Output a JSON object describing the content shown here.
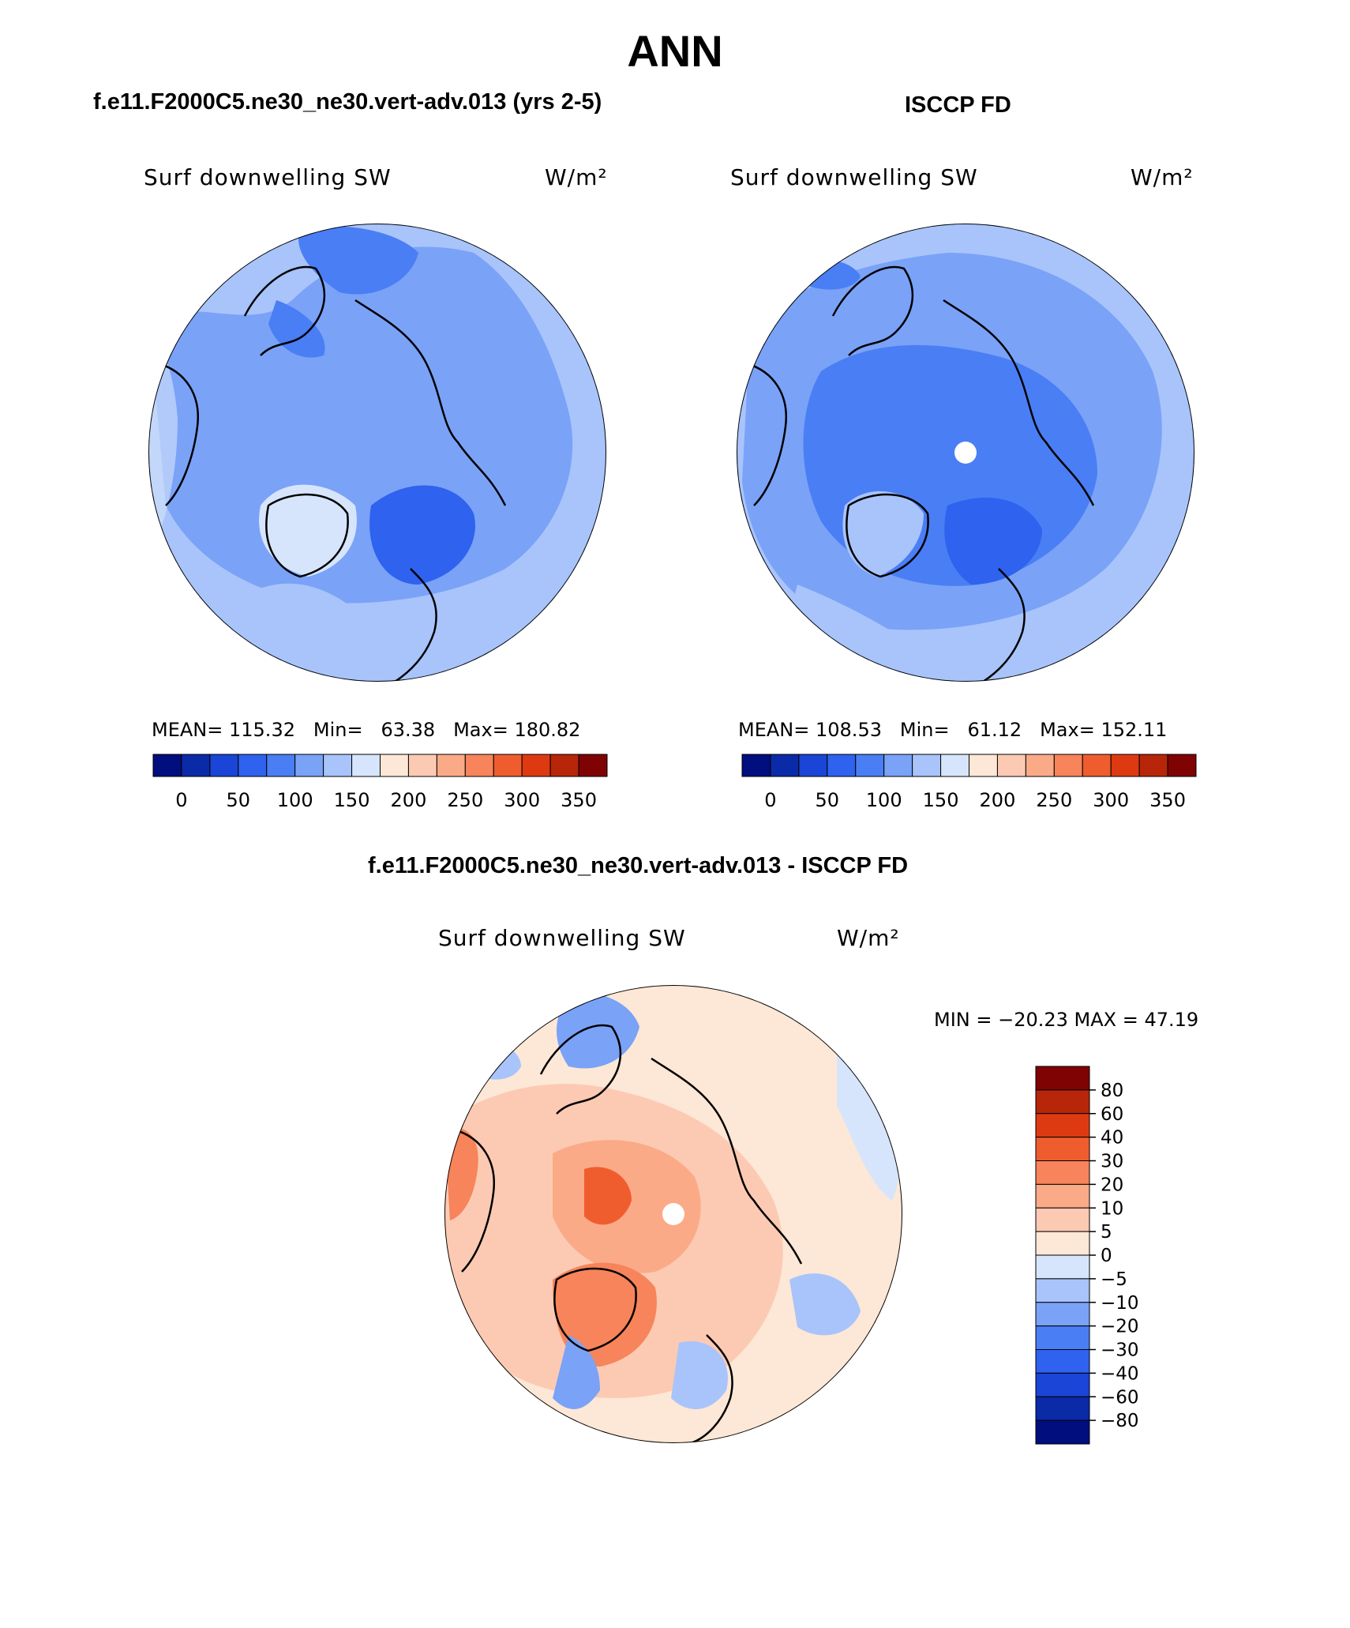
{
  "page": {
    "title": "ANN",
    "left_title": "f.e11.F2000C5.ne30_ne30.vert-adv.013 (yrs 2-5)",
    "right_title": "ISCCP FD",
    "diff_title": "f.e11.F2000C5.ne30_ne30.vert-adv.013 - ISCCP FD"
  },
  "colors": {
    "abs_scale": [
      "#000e7e",
      "#0a2aa8",
      "#1a45d6",
      "#2e62ef",
      "#4a7ef4",
      "#7aa2f7",
      "#a8c4fa",
      "#d6e5fc",
      "#fde7d6",
      "#fccab3",
      "#fbaa88",
      "#f7845a",
      "#ef5d2f",
      "#de3a12",
      "#b72608",
      "#7f0303"
    ],
    "diff_scale": [
      "#000e7e",
      "#0a2aa8",
      "#1a45d6",
      "#2e62ef",
      "#4a7ef4",
      "#7aa2f7",
      "#a8c4fa",
      "#d6e5fc",
      "#fde7d6",
      "#fccab3",
      "#fbaa88",
      "#f7845a",
      "#ef5d2f",
      "#de3a12",
      "#b72608",
      "#7f0303"
    ]
  },
  "chart_data": [
    {
      "type": "heatmap",
      "map": "north-polar-stereographic",
      "variable": "Surf downwelling SW",
      "units": "W/m²",
      "stats": {
        "mean": 115.32,
        "min": 63.38,
        "max": 180.82
      },
      "stats_text": {
        "mean_label": "MEAN=",
        "mean": "115.32",
        "min_label": "Min=",
        "min": "63.38",
        "max_label": "Max=",
        "max": "180.82"
      },
      "colorbar_ticks": [
        "0",
        "50",
        "100",
        "150",
        "200",
        "250",
        "300",
        "350"
      ]
    },
    {
      "type": "heatmap",
      "map": "north-polar-stereographic",
      "variable": "Surf downwelling SW",
      "units": "W/m²",
      "stats": {
        "mean": 108.53,
        "min": 61.12,
        "max": 152.11
      },
      "stats_text": {
        "mean_label": "MEAN=",
        "mean": "108.53",
        "min_label": "Min=",
        "min": "61.12",
        "max_label": "Max=",
        "max": "152.11"
      },
      "colorbar_ticks": [
        "0",
        "50",
        "100",
        "150",
        "200",
        "250",
        "300",
        "350"
      ]
    },
    {
      "type": "heatmap",
      "map": "north-polar-stereographic",
      "variable": "Surf downwelling SW",
      "units": "W/m²",
      "stats": {
        "min": -20.23,
        "max": 47.19
      },
      "stats_text": "MIN = −20.23 MAX =   47.19",
      "colorbar_ticks": [
        "80",
        "60",
        "40",
        "30",
        "20",
        "10",
        "5",
        "0",
        "−5",
        "−10",
        "−20",
        "−30",
        "−40",
        "−60",
        "−80"
      ]
    }
  ]
}
